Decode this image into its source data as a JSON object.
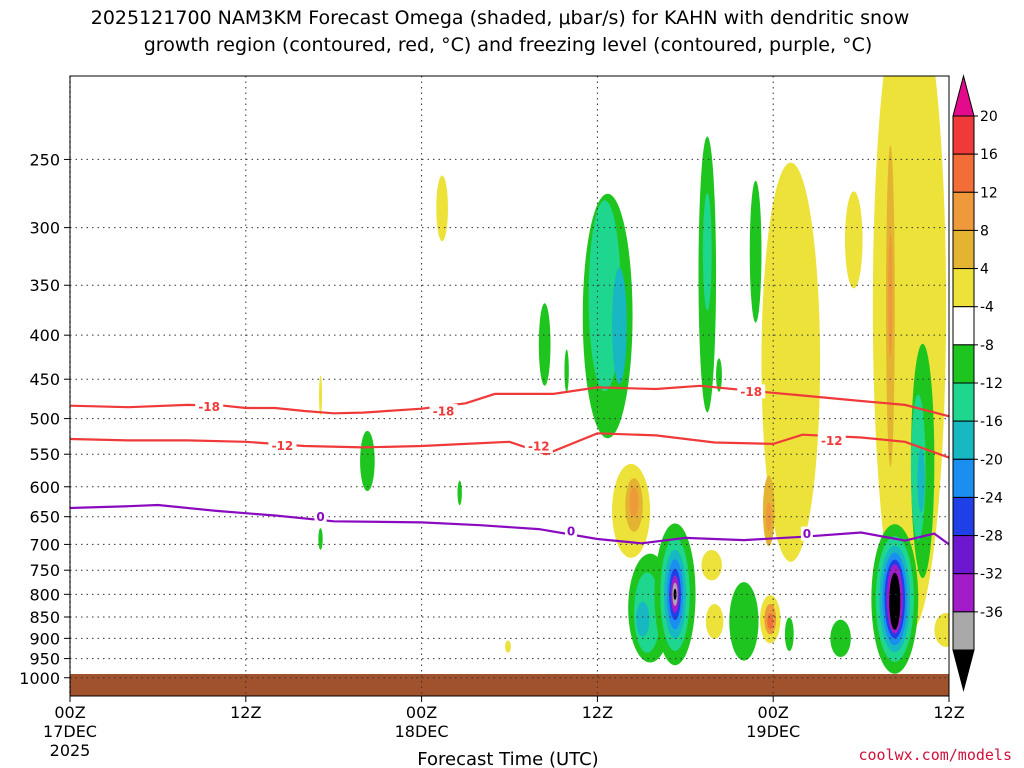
{
  "chart_data": {
    "type": "heatmap",
    "title_line1": "2025121700 NAM3KM Forecast Omega (shaded, μbar/s) for KAHN with dendritic snow",
    "title_line2": "growth region (contoured, red, °C) and freezing level (contoured, purple, °C)",
    "xlabel": "Forecast Time (UTC)",
    "credit": "coolwx.com/models",
    "x_hours_range": [
      0,
      60
    ],
    "y_pressure_range": [
      1050,
      200
    ],
    "y_scale": "log-pressure",
    "x_ticks": [
      {
        "h": 0,
        "label": "00Z",
        "date": "17DEC",
        "year": "2025"
      },
      {
        "h": 12,
        "label": "12Z",
        "date": "",
        "year": ""
      },
      {
        "h": 24,
        "label": "00Z",
        "date": "18DEC",
        "year": ""
      },
      {
        "h": 36,
        "label": "12Z",
        "date": "",
        "year": ""
      },
      {
        "h": 48,
        "label": "00Z",
        "date": "19DEC",
        "year": ""
      },
      {
        "h": 60,
        "label": "12Z",
        "date": "",
        "year": ""
      }
    ],
    "y_ticks": [
      250,
      300,
      350,
      400,
      450,
      500,
      550,
      600,
      650,
      700,
      750,
      800,
      850,
      900,
      950,
      1000
    ],
    "grid": true,
    "colorbar": {
      "labels": [
        "20",
        "16",
        "12",
        "8",
        "4",
        "-4",
        "-8",
        "-12",
        "-16",
        "-20",
        "-24",
        "-28",
        "-32",
        "-36"
      ],
      "bins": [
        {
          "color": "#e30b8c"
        },
        {
          "color": "#f03a3a"
        },
        {
          "color": "#f26d38"
        },
        {
          "color": "#ee9a3a"
        },
        {
          "color": "#e4b332"
        },
        {
          "color": "#ede23a"
        },
        {
          "color": "#ffffff"
        },
        {
          "color": "#1ec51e"
        },
        {
          "color": "#1fd68e"
        },
        {
          "color": "#18b8c2"
        },
        {
          "color": "#1a8ff0"
        },
        {
          "color": "#1e40e6"
        },
        {
          "color": "#6d18d0"
        },
        {
          "color": "#a21cc9"
        },
        {
          "color": "#a9a9a9"
        },
        {
          "color": "#000000"
        }
      ]
    },
    "isotherms": [
      {
        "label": "-18",
        "color": "#f03a3a",
        "points": [
          [
            0,
            483
          ],
          [
            4,
            485
          ],
          [
            8,
            482
          ],
          [
            10.5,
            483
          ],
          [
            12,
            486
          ],
          [
            14,
            486
          ],
          [
            16,
            490
          ],
          [
            18,
            493
          ],
          [
            20,
            492
          ],
          [
            24,
            487
          ],
          [
            27,
            480
          ],
          [
            29,
            468
          ],
          [
            33,
            468
          ],
          [
            36,
            460
          ],
          [
            40,
            462
          ],
          [
            43,
            458
          ],
          [
            47,
            465
          ],
          [
            50,
            470
          ],
          [
            54,
            477
          ],
          [
            57,
            482
          ],
          [
            60,
            497
          ]
        ],
        "label_at": [
          [
            9.5,
            484
          ],
          [
            25.5,
            490
          ],
          [
            46.5,
            465
          ]
        ]
      },
      {
        "label": "-12",
        "color": "#f03a3a",
        "points": [
          [
            0,
            528
          ],
          [
            4,
            530
          ],
          [
            8,
            530
          ],
          [
            12,
            532
          ],
          [
            16,
            538
          ],
          [
            20,
            540
          ],
          [
            24,
            538
          ],
          [
            27,
            535
          ],
          [
            30,
            532
          ],
          [
            32.5,
            550
          ],
          [
            36,
            520
          ],
          [
            40,
            523
          ],
          [
            44,
            533
          ],
          [
            48,
            535
          ],
          [
            50,
            522
          ],
          [
            54,
            526
          ],
          [
            57,
            532
          ],
          [
            60,
            555
          ]
        ],
        "label_at": [
          [
            14.5,
            537
          ],
          [
            32,
            538
          ],
          [
            52,
            530
          ]
        ]
      },
      {
        "label": "0",
        "color": "#8a0ac0",
        "points": [
          [
            0,
            635
          ],
          [
            4,
            632
          ],
          [
            6,
            630
          ],
          [
            10,
            640
          ],
          [
            14,
            648
          ],
          [
            18,
            658
          ],
          [
            24,
            660
          ],
          [
            28,
            665
          ],
          [
            32,
            672
          ],
          [
            36,
            690
          ],
          [
            39,
            698
          ],
          [
            42,
            688
          ],
          [
            46,
            692
          ],
          [
            50,
            686
          ],
          [
            54,
            678
          ],
          [
            57,
            693
          ],
          [
            59,
            680
          ],
          [
            60,
            700
          ]
        ],
        "label_at": [
          [
            17.1,
            650
          ],
          [
            34.2,
            675
          ],
          [
            50.3,
            680
          ]
        ]
      }
    ],
    "omega_blobs": [
      {
        "cls": "pos",
        "bin": 5,
        "x": 25.4,
        "p": 285,
        "rx": 0.4,
        "rp": 25
      },
      {
        "cls": "pos",
        "bin": 5,
        "x": 17.1,
        "p": 470,
        "rx": 0.1,
        "rp": 25
      },
      {
        "cls": "neg",
        "bin": 7,
        "x": 20.3,
        "p": 560,
        "rx": 0.5,
        "rp": 45
      },
      {
        "cls": "neg",
        "bin": 7,
        "x": 17.1,
        "p": 690,
        "rx": 0.15,
        "rp": 20
      },
      {
        "cls": "neg",
        "bin": 7,
        "x": 26.6,
        "p": 610,
        "rx": 0.15,
        "rp": 20
      },
      {
        "cls": "neg",
        "bin": 7,
        "x": 32.4,
        "p": 410,
        "rx": 0.4,
        "rp": 45
      },
      {
        "cls": "neg",
        "bin": 7,
        "x": 33.9,
        "p": 440,
        "rx": 0.15,
        "rp": 25
      },
      {
        "cls": "neg",
        "bin": 7,
        "x": 36.7,
        "p": 380,
        "rx": 1.7,
        "rp": 120
      },
      {
        "cls": "neg",
        "bin": 8,
        "x": 36.5,
        "p": 360,
        "rx": 1.1,
        "rp": 90
      },
      {
        "cls": "neg",
        "bin": 9,
        "x": 37.5,
        "p": 390,
        "rx": 0.5,
        "rp": 60
      },
      {
        "cls": "neg",
        "bin": 7,
        "x": 43.5,
        "p": 340,
        "rx": 0.6,
        "rp": 120
      },
      {
        "cls": "neg",
        "bin": 8,
        "x": 43.5,
        "p": 320,
        "rx": 0.3,
        "rp": 50
      },
      {
        "cls": "neg",
        "bin": 7,
        "x": 46.8,
        "p": 320,
        "rx": 0.4,
        "rp": 60
      },
      {
        "cls": "neg",
        "bin": 7,
        "x": 44.3,
        "p": 445,
        "rx": 0.2,
        "rp": 20
      },
      {
        "cls": "pos",
        "bin": 5,
        "x": 49.2,
        "p": 430,
        "rx": 2.0,
        "rp": 210
      },
      {
        "cls": "pos",
        "bin": 5,
        "x": 57.3,
        "p": 370,
        "rx": 2.5,
        "rp": 260
      },
      {
        "cls": "pos",
        "bin": 4,
        "x": 56.0,
        "p": 370,
        "rx": 0.3,
        "rp": 150
      },
      {
        "cls": "pos",
        "bin": 3,
        "x": 56.0,
        "p": 360,
        "rx": 0.15,
        "rp": 60
      },
      {
        "cls": "pos",
        "bin": 5,
        "x": 53.5,
        "p": 310,
        "rx": 0.6,
        "rp": 40
      },
      {
        "cls": "pos",
        "bin": 5,
        "x": 49.5,
        "p": 600,
        "rx": 0.9,
        "rp": 110
      },
      {
        "cls": "pos",
        "bin": 4,
        "x": 47.7,
        "p": 640,
        "rx": 0.4,
        "rp": 60
      },
      {
        "cls": "pos",
        "bin": 3,
        "x": 47.7,
        "p": 650,
        "rx": 0.2,
        "rp": 25
      },
      {
        "cls": "neg",
        "bin": 7,
        "x": 58.2,
        "p": 560,
        "rx": 0.8,
        "rp": 170
      },
      {
        "cls": "neg",
        "bin": 8,
        "x": 57.9,
        "p": 570,
        "rx": 0.5,
        "rp": 110
      },
      {
        "cls": "neg",
        "bin": 9,
        "x": 58.1,
        "p": 590,
        "rx": 0.25,
        "rp": 50
      },
      {
        "cls": "pos",
        "bin": 5,
        "x": 38.3,
        "p": 640,
        "rx": 1.3,
        "rp": 80
      },
      {
        "cls": "pos",
        "bin": 4,
        "x": 38.5,
        "p": 630,
        "rx": 0.6,
        "rp": 45
      },
      {
        "cls": "pos",
        "bin": 3,
        "x": 38.5,
        "p": 625,
        "rx": 0.3,
        "rp": 25
      },
      {
        "cls": "neg",
        "bin": 7,
        "x": 39.6,
        "p": 830,
        "rx": 1.5,
        "rp": 120
      },
      {
        "cls": "neg",
        "bin": 8,
        "x": 39.4,
        "p": 840,
        "rx": 0.9,
        "rp": 90
      },
      {
        "cls": "neg",
        "bin": 9,
        "x": 39.1,
        "p": 855,
        "rx": 0.45,
        "rp": 40
      },
      {
        "cls": "neg",
        "bin": 7,
        "x": 41.3,
        "p": 800,
        "rx": 1.4,
        "rp": 150
      },
      {
        "cls": "neg",
        "bin": 8,
        "x": 41.3,
        "p": 800,
        "rx": 1.0,
        "rp": 120
      },
      {
        "cls": "neg",
        "bin": 9,
        "x": 41.3,
        "p": 800,
        "rx": 0.75,
        "rp": 95
      },
      {
        "cls": "neg",
        "bin": 10,
        "x": 41.3,
        "p": 800,
        "rx": 0.55,
        "rp": 75
      },
      {
        "cls": "neg",
        "bin": 11,
        "x": 41.3,
        "p": 800,
        "rx": 0.4,
        "rp": 55
      },
      {
        "cls": "neg",
        "bin": 13,
        "x": 41.3,
        "p": 800,
        "rx": 0.28,
        "rp": 40
      },
      {
        "cls": "neg",
        "bin": 14,
        "x": 41.3,
        "p": 800,
        "rx": 0.18,
        "rp": 25
      },
      {
        "cls": "neg",
        "bin": 15,
        "x": 41.3,
        "p": 800,
        "rx": 0.09,
        "rp": 12
      },
      {
        "cls": "pos",
        "bin": 5,
        "x": 44.0,
        "p": 860,
        "rx": 0.6,
        "rp": 40
      },
      {
        "cls": "pos",
        "bin": 5,
        "x": 47.8,
        "p": 855,
        "rx": 0.7,
        "rp": 55
      },
      {
        "cls": "pos",
        "bin": 3,
        "x": 47.8,
        "p": 855,
        "rx": 0.4,
        "rp": 35
      },
      {
        "cls": "pos",
        "bin": 2,
        "x": 47.8,
        "p": 860,
        "rx": 0.2,
        "rp": 18
      },
      {
        "cls": "neg",
        "bin": 7,
        "x": 46.0,
        "p": 860,
        "rx": 1.0,
        "rp": 90
      },
      {
        "cls": "neg",
        "bin": 7,
        "x": 49.1,
        "p": 890,
        "rx": 0.3,
        "rp": 40
      },
      {
        "cls": "neg",
        "bin": 7,
        "x": 52.6,
        "p": 900,
        "rx": 0.7,
        "rp": 45
      },
      {
        "cls": "neg",
        "bin": 7,
        "x": 56.3,
        "p": 810,
        "rx": 1.6,
        "rp": 160
      },
      {
        "cls": "neg",
        "bin": 8,
        "x": 56.3,
        "p": 810,
        "rx": 1.3,
        "rp": 135
      },
      {
        "cls": "neg",
        "bin": 9,
        "x": 56.3,
        "p": 810,
        "rx": 1.05,
        "rp": 115
      },
      {
        "cls": "neg",
        "bin": 10,
        "x": 56.3,
        "p": 810,
        "rx": 0.85,
        "rp": 100
      },
      {
        "cls": "neg",
        "bin": 11,
        "x": 56.3,
        "p": 810,
        "rx": 0.7,
        "rp": 85
      },
      {
        "cls": "neg",
        "bin": 13,
        "x": 56.3,
        "p": 810,
        "rx": 0.55,
        "rp": 75
      },
      {
        "cls": "neg",
        "bin": 15,
        "x": 56.3,
        "p": 815,
        "rx": 0.38,
        "rp": 62
      },
      {
        "cls": "pos",
        "bin": 5,
        "x": 59.8,
        "p": 880,
        "rx": 0.8,
        "rp": 40
      },
      {
        "cls": "pos",
        "bin": 5,
        "x": 29.9,
        "p": 920,
        "rx": 0.2,
        "rp": 15
      },
      {
        "cls": "pos",
        "bin": 5,
        "x": 43.8,
        "p": 740,
        "rx": 0.7,
        "rp": 30
      },
      {
        "cls": "pos",
        "bin": 5,
        "x": 58.7,
        "p": 210,
        "rx": 0.4,
        "rp": 15
      }
    ],
    "ground": {
      "color": "#a0522d",
      "p_top": 990
    }
  }
}
